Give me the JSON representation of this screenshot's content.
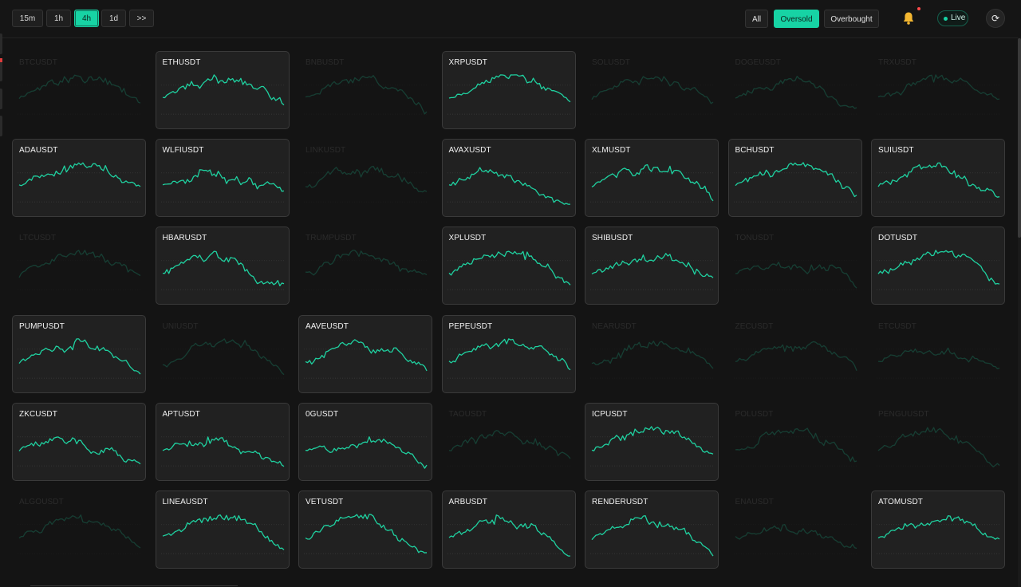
{
  "toolbar": {
    "timeframes": [
      {
        "label": "15m",
        "active": false
      },
      {
        "label": "1h",
        "active": false
      },
      {
        "label": "4h",
        "active": true
      },
      {
        "label": "1d",
        "active": false
      },
      {
        "label": ">>",
        "active": false
      }
    ],
    "filters": [
      {
        "label": "All",
        "active": false
      },
      {
        "label": "Oversold",
        "active": true
      },
      {
        "label": "Overbought",
        "active": false
      }
    ],
    "live_label": "Live",
    "refresh_icon": "refresh-icon",
    "bell_icon": "bell-icon"
  },
  "colors": {
    "accent": "#17d3a4",
    "line": "#1fd1a0",
    "card_bg": "#212121",
    "page_bg": "#141414"
  },
  "cards": [
    {
      "symbol": "BTCUSDT",
      "active": false
    },
    {
      "symbol": "ETHUSDT",
      "active": true
    },
    {
      "symbol": "BNBUSDT",
      "active": false
    },
    {
      "symbol": "XRPUSDT",
      "active": true
    },
    {
      "symbol": "SOLUSDT",
      "active": false
    },
    {
      "symbol": "DOGEUSDT",
      "active": false
    },
    {
      "symbol": "TRXUSDT",
      "active": false
    },
    {
      "symbol": "ADAUSDT",
      "active": true
    },
    {
      "symbol": "WLFIUSDT",
      "active": true
    },
    {
      "symbol": "LINKUSDT",
      "active": false
    },
    {
      "symbol": "AVAXUSDT",
      "active": true
    },
    {
      "symbol": "XLMUSDT",
      "active": true
    },
    {
      "symbol": "BCHUSDT",
      "active": true
    },
    {
      "symbol": "SUIUSDT",
      "active": true
    },
    {
      "symbol": "LTCUSDT",
      "active": false
    },
    {
      "symbol": "HBARUSDT",
      "active": true
    },
    {
      "symbol": "TRUMPUSDT",
      "active": false
    },
    {
      "symbol": "XPLUSDT",
      "active": true
    },
    {
      "symbol": "SHIBUSDT",
      "active": true
    },
    {
      "symbol": "TONUSDT",
      "active": false
    },
    {
      "symbol": "DOTUSDT",
      "active": true
    },
    {
      "symbol": "PUMPUSDT",
      "active": true
    },
    {
      "symbol": "UNIUSDT",
      "active": false
    },
    {
      "symbol": "AAVEUSDT",
      "active": true
    },
    {
      "symbol": "PEPEUSDT",
      "active": true
    },
    {
      "symbol": "NEARUSDT",
      "active": false
    },
    {
      "symbol": "ZECUSDT",
      "active": false
    },
    {
      "symbol": "ETCUSDT",
      "active": false
    },
    {
      "symbol": "ZKCUSDT",
      "active": true
    },
    {
      "symbol": "APTUSDT",
      "active": true
    },
    {
      "symbol": "0GUSDT",
      "active": true
    },
    {
      "symbol": "TAOUSDT",
      "active": false
    },
    {
      "symbol": "ICPUSDT",
      "active": true
    },
    {
      "symbol": "POLUSDT",
      "active": false
    },
    {
      "symbol": "PENGUUSDT",
      "active": false
    },
    {
      "symbol": "ALGOUSDT",
      "active": false
    },
    {
      "symbol": "LINEAUSDT",
      "active": true
    },
    {
      "symbol": "VETUSDT",
      "active": true
    },
    {
      "symbol": "ARBUSDT",
      "active": true
    },
    {
      "symbol": "RENDERUSDT",
      "active": true
    },
    {
      "symbol": "ENAUSDT",
      "active": false
    },
    {
      "symbol": "ATOMUSDT",
      "active": true
    }
  ]
}
